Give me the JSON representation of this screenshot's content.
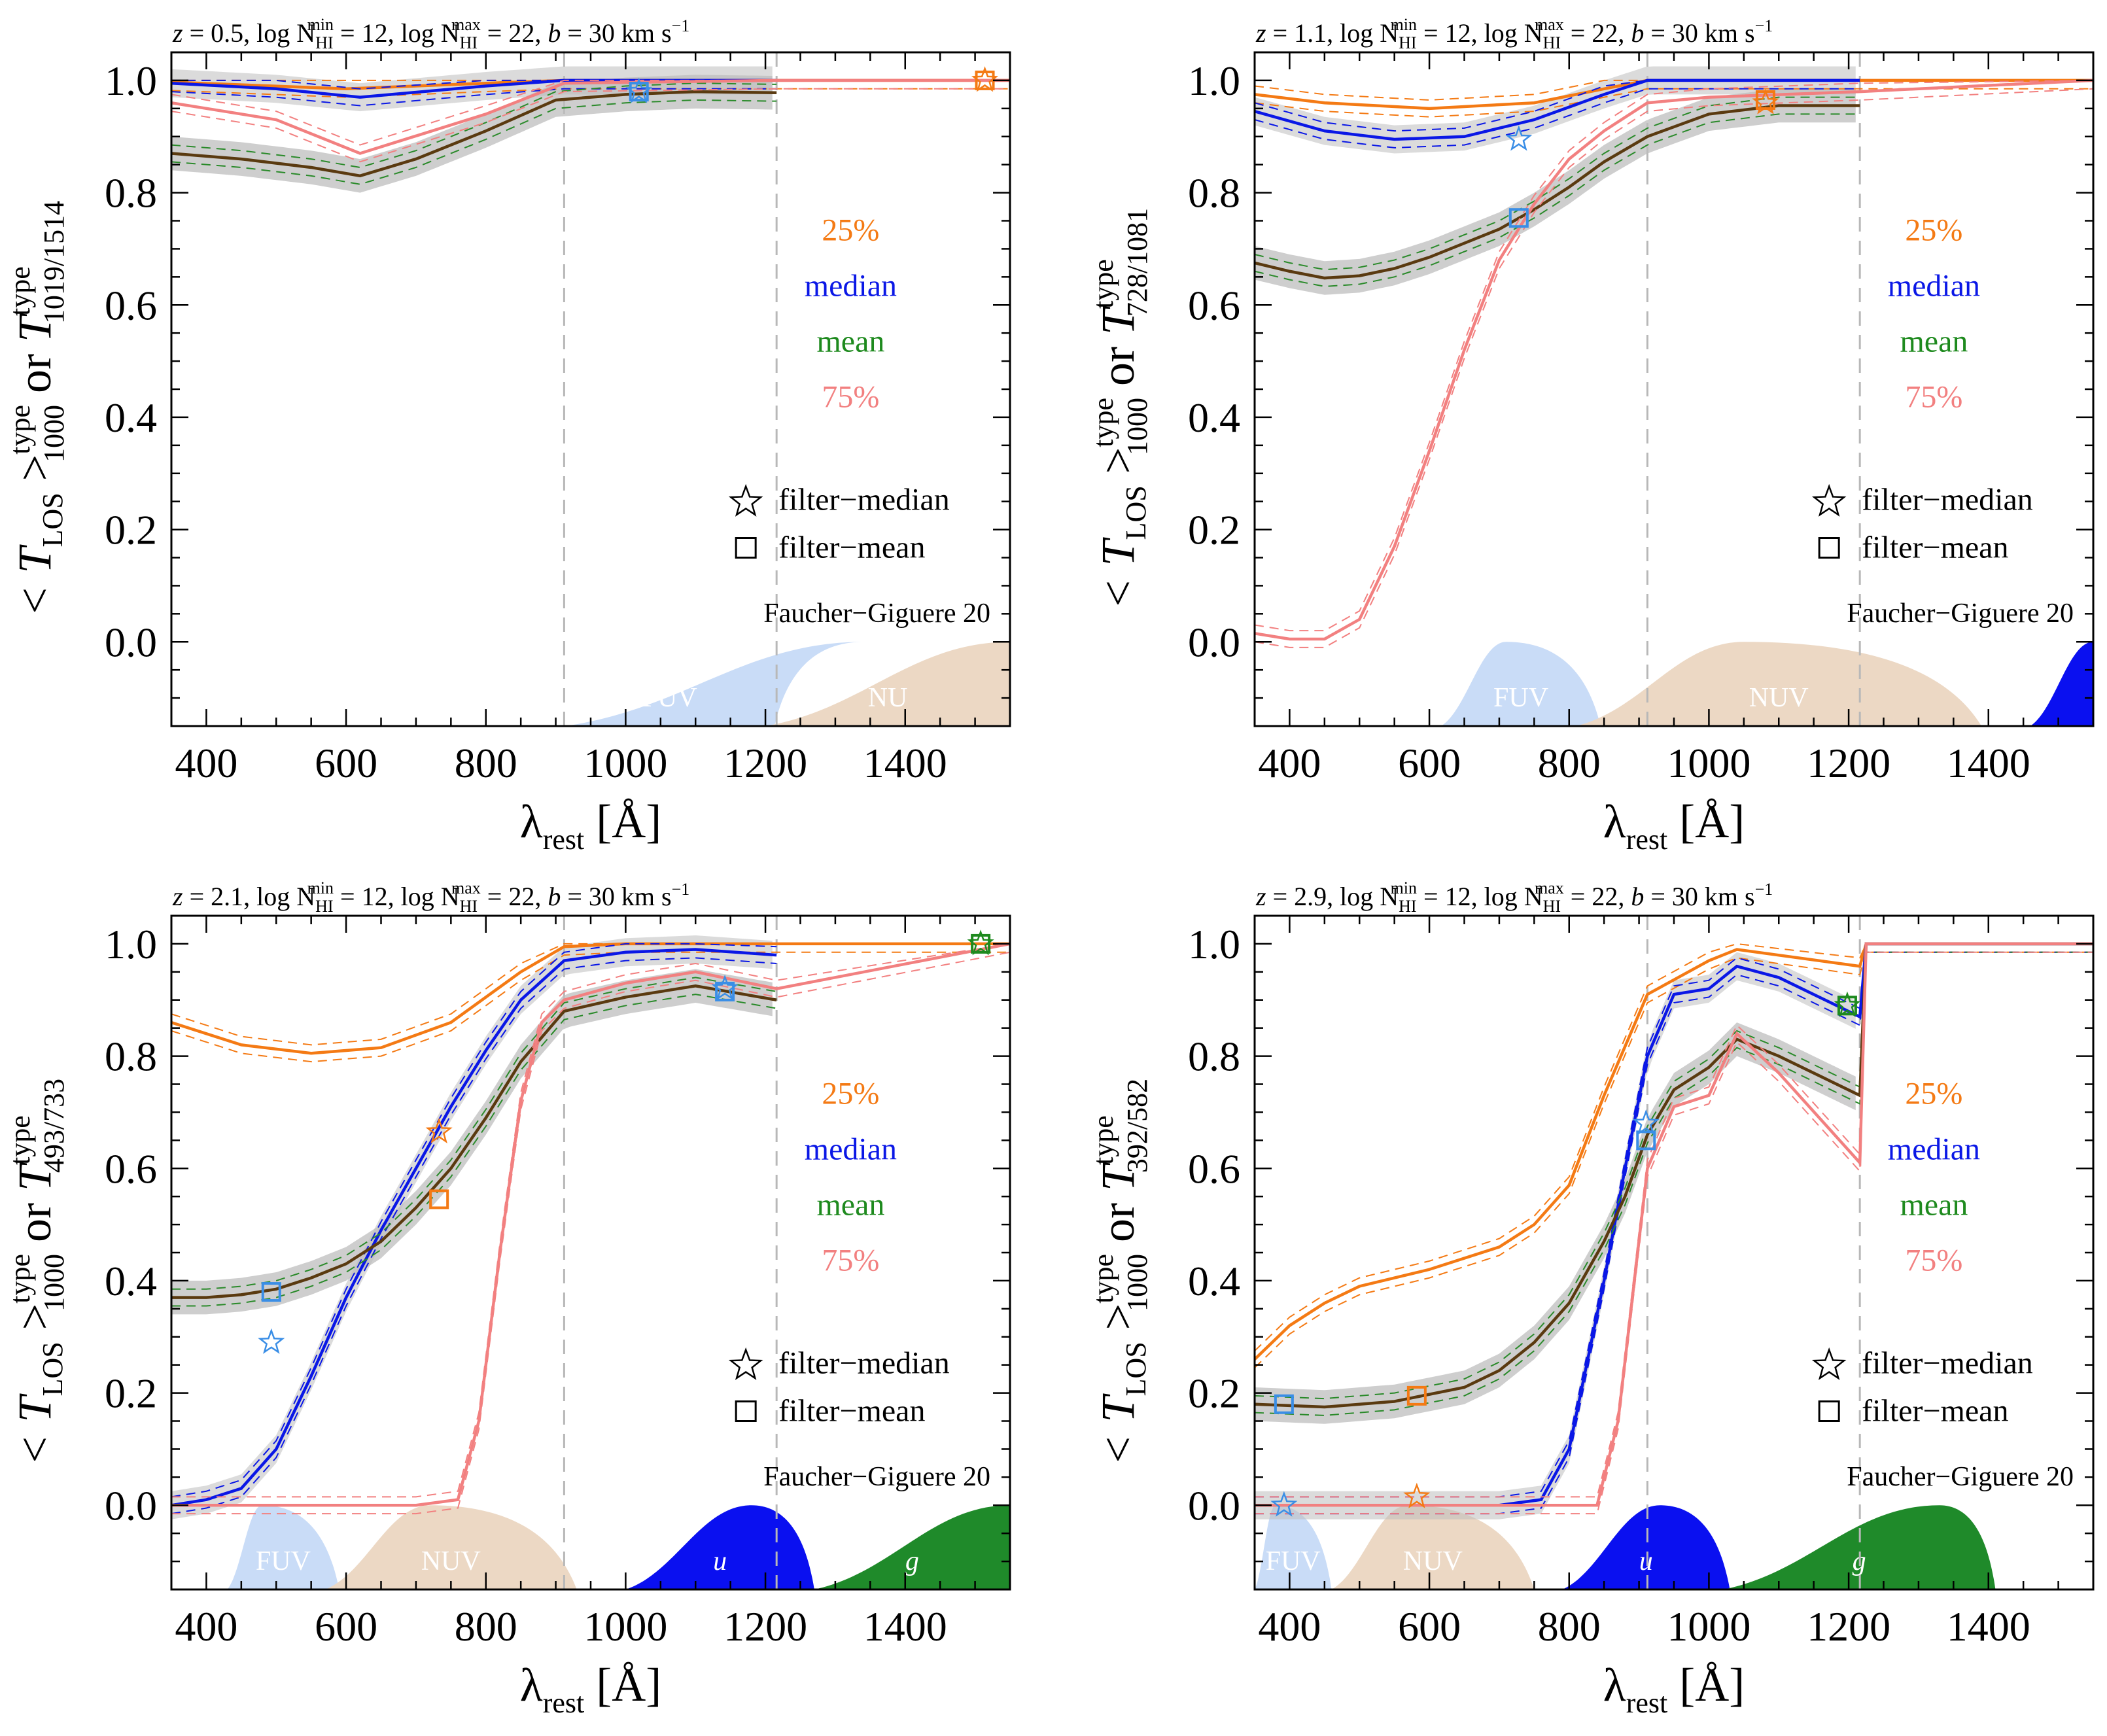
{
  "figure": {
    "xlabel": "λ",
    "xlabel_sub": "rest",
    "xlabel_unit": "[Å]",
    "ylabel_main": "T",
    "ylabel_or": "or",
    "ylabel_mean": "< T",
    "ylabel_mean_sub": "LOS",
    "ylabel_mean_close": ">",
    "ylabel_mean_sup": "type",
    "ylabel_mean_subscript": "1000",
    "legend_percentiles": [
      {
        "label": "25%",
        "color": "#f47a14"
      },
      {
        "label": "median",
        "color": "#0a17e6"
      },
      {
        "label": "mean",
        "color": "#1e8a1e"
      },
      {
        "label": "75%",
        "color": "#f28080"
      }
    ],
    "legend_star": "filter−median",
    "legend_square": "filter−mean",
    "credit": "Faucher−Giguere 20",
    "title_parts": {
      "zlabel": "z",
      "n_min_label": "log N",
      "n_min_sub": "HI",
      "n_min_sup": "min",
      "n_min_val": "= 12,",
      "n_max_label": "log N",
      "n_max_sup": "max",
      "n_max_val": "= 22,",
      "b_text": "b",
      "b_val": "= 30 km s",
      "b_exp": "−1"
    },
    "colors": {
      "p25": "#f47a14",
      "median": "#0a17e6",
      "mean_line": "#5a3a10",
      "mean_dash": "#2a8a2a",
      "p75": "#f28080",
      "shade": "#bdbdbd",
      "marker_blue": "#3a8ee6",
      "marker_orange": "#f47a14",
      "marker_green": "#1e8a1e",
      "fuv": "#c9dcf7",
      "nuv": "#ecd8c4",
      "u": "#0a10f0",
      "g": "#1f8a2a",
      "vline": "#b8b8b8"
    }
  },
  "chart_data": [
    {
      "type": "line",
      "panel": "top-left",
      "z": "0.5",
      "zval": "= 0.5,",
      "ylabel_sub": "1019/1514",
      "xlim": [
        350,
        1550
      ],
      "ylim": [
        -0.15,
        1.05
      ],
      "xticks": [
        "400",
        "600",
        "800",
        "1000",
        "1200",
        "1400"
      ],
      "yticks": [
        "0.0",
        "0.2",
        "0.4",
        "0.6",
        "0.8",
        "1.0"
      ],
      "vlines": [
        912,
        1216
      ],
      "series": [
        {
          "name": "25%",
          "x": [
            350,
            600,
            800,
            912,
            1216,
            1550
          ],
          "y": [
            0.997,
            0.985,
            0.995,
            1.0,
            1.0,
            1.0
          ]
        },
        {
          "name": "median",
          "x": [
            350,
            500,
            620,
            800,
            912,
            1216
          ],
          "y": [
            0.995,
            0.985,
            0.97,
            0.99,
            1.0,
            1.0
          ]
        },
        {
          "name": "mean",
          "x": [
            350,
            450,
            550,
            620,
            700,
            800,
            900,
            1000,
            1100,
            1216
          ],
          "y": [
            0.87,
            0.86,
            0.845,
            0.83,
            0.86,
            0.91,
            0.965,
            0.975,
            0.98,
            0.978
          ]
        },
        {
          "name": "75%",
          "x": [
            350,
            500,
            620,
            800,
            912,
            1216,
            1550
          ],
          "y": [
            0.96,
            0.93,
            0.87,
            0.94,
            0.995,
            1.0,
            1.0
          ]
        }
      ],
      "filter_points": [
        {
          "filter": "FUV",
          "x": 1019,
          "median": 0.98,
          "mean": 0.98,
          "color": "blue"
        },
        {
          "filter": "NUV",
          "x": 1514,
          "median": 1.0,
          "mean": 1.0,
          "color": "orange"
        }
      ],
      "bands": [
        {
          "label": "FUV",
          "x": [
            913,
            1213
          ],
          "peak": 1341,
          "fill": "fuv"
        },
        {
          "label": "NU",
          "x": [
            1200,
            1550
          ],
          "peak": 1550,
          "fill": "nuv"
        }
      ]
    },
    {
      "type": "line",
      "panel": "top-right",
      "z": "1.1",
      "zval": "= 1.1,",
      "ylabel_sub": "728/1081",
      "xlim": [
        350,
        1550
      ],
      "ylim": [
        -0.15,
        1.05
      ],
      "xticks": [
        "400",
        "600",
        "800",
        "1000",
        "1200",
        "1400"
      ],
      "yticks": [
        "0.0",
        "0.2",
        "0.4",
        "0.6",
        "0.8",
        "1.0"
      ],
      "vlines": [
        912,
        1216
      ],
      "series": [
        {
          "name": "25%",
          "x": [
            350,
            450,
            600,
            750,
            850,
            912,
            1216,
            1550
          ],
          "y": [
            0.975,
            0.96,
            0.95,
            0.96,
            0.985,
            1.0,
            1.0,
            1.0
          ]
        },
        {
          "name": "median",
          "x": [
            350,
            450,
            550,
            650,
            750,
            850,
            912,
            1216
          ],
          "y": [
            0.945,
            0.91,
            0.895,
            0.9,
            0.93,
            0.975,
            1.0,
            1.0
          ]
        },
        {
          "name": "mean",
          "x": [
            350,
            400,
            450,
            500,
            550,
            600,
            650,
            700,
            750,
            800,
            850,
            912,
            1000,
            1100,
            1216
          ],
          "y": [
            0.675,
            0.66,
            0.648,
            0.652,
            0.665,
            0.685,
            0.71,
            0.735,
            0.77,
            0.81,
            0.855,
            0.9,
            0.94,
            0.955,
            0.955
          ]
        },
        {
          "name": "75%",
          "x": [
            350,
            400,
            450,
            500,
            550,
            600,
            650,
            700,
            750,
            800,
            850,
            912,
            1000,
            1216,
            1550
          ],
          "y": [
            0.015,
            0.005,
            0.005,
            0.04,
            0.17,
            0.34,
            0.52,
            0.68,
            0.78,
            0.86,
            0.91,
            0.96,
            0.97,
            0.98,
            1.0
          ]
        }
      ],
      "filter_points": [
        {
          "filter": "FUV",
          "x": 728,
          "median": 0.895,
          "mean": 0.755,
          "color": "blue"
        },
        {
          "filter": "NUV",
          "x": 1081,
          "median": 0.96,
          "mean": 0.965,
          "color": "orange"
        }
      ],
      "bands": [
        {
          "label": "FUV",
          "x": [
            617,
            845
          ],
          "peak": 710,
          "fill": "fuv"
        },
        {
          "label": "NUV",
          "x": [
            810,
            1390
          ],
          "peak": 1050,
          "fill": "nuv"
        },
        {
          "label": "",
          "x": [
            1460,
            1550
          ],
          "peak": 1550,
          "fill": "u"
        }
      ]
    },
    {
      "type": "line",
      "panel": "bottom-left",
      "z": "2.1",
      "zval": "= 2.1,",
      "ylabel_sub": "493/733",
      "xlim": [
        350,
        1550
      ],
      "ylim": [
        -0.15,
        1.05
      ],
      "xticks": [
        "400",
        "600",
        "800",
        "1000",
        "1200",
        "1400"
      ],
      "yticks": [
        "0.0",
        "0.2",
        "0.4",
        "0.6",
        "0.8",
        "1.0"
      ],
      "vlines": [
        912,
        1216
      ],
      "series": [
        {
          "name": "25%",
          "x": [
            350,
            450,
            550,
            650,
            750,
            850,
            912,
            1000,
            1216,
            1550
          ],
          "y": [
            0.86,
            0.82,
            0.805,
            0.815,
            0.86,
            0.95,
            0.995,
            1.0,
            1.0,
            1.0
          ]
        },
        {
          "name": "median",
          "x": [
            350,
            400,
            450,
            500,
            550,
            600,
            650,
            700,
            750,
            800,
            850,
            912,
            1000,
            1100,
            1216
          ],
          "y": [
            0.0,
            0.01,
            0.03,
            0.1,
            0.23,
            0.37,
            0.49,
            0.6,
            0.71,
            0.81,
            0.9,
            0.97,
            0.985,
            0.99,
            0.98
          ]
        },
        {
          "name": "mean",
          "x": [
            350,
            400,
            450,
            500,
            550,
            600,
            650,
            700,
            750,
            800,
            850,
            912,
            1000,
            1100,
            1216
          ],
          "y": [
            0.37,
            0.37,
            0.375,
            0.385,
            0.405,
            0.43,
            0.47,
            0.53,
            0.6,
            0.69,
            0.79,
            0.88,
            0.905,
            0.925,
            0.9
          ]
        },
        {
          "name": "75%",
          "x": [
            350,
            700,
            760,
            790,
            820,
            850,
            880,
            912,
            1000,
            1100,
            1216,
            1550
          ],
          "y": [
            0.0,
            0.0,
            0.01,
            0.15,
            0.45,
            0.72,
            0.86,
            0.9,
            0.93,
            0.95,
            0.92,
            1.0
          ]
        }
      ],
      "filter_points": [
        {
          "filter": "FUV",
          "x": 493,
          "median": 0.29,
          "mean": 0.38,
          "color": "blue"
        },
        {
          "filter": "NUV",
          "x": 733,
          "median": 0.665,
          "mean": 0.545,
          "color": "orange"
        },
        {
          "filter": "u",
          "x": 1142,
          "median": 0.92,
          "mean": 0.915,
          "color": "blue"
        },
        {
          "filter": "g",
          "x": 1508,
          "median": 1.0,
          "mean": 1.0,
          "color": "green"
        }
      ],
      "bands": [
        {
          "label": "FUV",
          "x": [
            430,
            590
          ],
          "peak": 480,
          "fill": "fuv"
        },
        {
          "label": "NUV",
          "x": [
            570,
            930
          ],
          "peak": 720,
          "fill": "nuv"
        },
        {
          "label": "u",
          "x": [
            1000,
            1270
          ],
          "peak": 1180,
          "fill": "u"
        },
        {
          "label": "g",
          "x": [
            1270,
            1550
          ],
          "peak": 1550,
          "fill": "g"
        }
      ]
    },
    {
      "type": "line",
      "panel": "bottom-right",
      "z": "2.9",
      "zval": "= 2.9,",
      "ylabel_sub": "392/582",
      "xlim": [
        350,
        1550
      ],
      "ylim": [
        -0.15,
        1.05
      ],
      "xticks": [
        "400",
        "600",
        "800",
        "1000",
        "1200",
        "1400"
      ],
      "yticks": [
        "0.0",
        "0.2",
        "0.4",
        "0.6",
        "0.8",
        "1.0"
      ],
      "vlines": [
        912,
        1216
      ],
      "series": [
        {
          "name": "25%",
          "x": [
            350,
            400,
            450,
            500,
            600,
            700,
            750,
            800,
            850,
            912,
            1000,
            1040,
            1216,
            1225,
            1550
          ],
          "y": [
            0.26,
            0.32,
            0.36,
            0.39,
            0.42,
            0.46,
            0.5,
            0.57,
            0.73,
            0.91,
            0.97,
            0.99,
            0.96,
            1.0,
            1.0
          ]
        },
        {
          "name": "median",
          "x": [
            350,
            700,
            760,
            800,
            850,
            880,
            912,
            950,
            1000,
            1040,
            1100,
            1216,
            1225,
            1550
          ],
          "y": [
            0.0,
            0.0,
            0.01,
            0.1,
            0.4,
            0.6,
            0.8,
            0.91,
            0.92,
            0.96,
            0.94,
            0.87,
            1.0,
            1.0
          ]
        },
        {
          "name": "mean",
          "x": [
            350,
            450,
            550,
            650,
            700,
            750,
            800,
            850,
            880,
            912,
            950,
            1000,
            1040,
            1100,
            1216,
            1225,
            1550
          ],
          "y": [
            0.18,
            0.175,
            0.185,
            0.21,
            0.24,
            0.29,
            0.36,
            0.47,
            0.55,
            0.66,
            0.74,
            0.78,
            0.83,
            0.8,
            0.73,
            1.0,
            1.0
          ]
        },
        {
          "name": "75%",
          "x": [
            350,
            840,
            870,
            912,
            950,
            1000,
            1040,
            1100,
            1216,
            1225,
            1550
          ],
          "y": [
            0.0,
            0.0,
            0.15,
            0.6,
            0.71,
            0.73,
            0.84,
            0.77,
            0.61,
            1.0,
            1.0
          ]
        }
      ],
      "filter_points": [
        {
          "filter": "FUV",
          "x": 392,
          "median": 0.0,
          "mean": 0.18,
          "color": "blue"
        },
        {
          "filter": "NUV",
          "x": 582,
          "median": 0.015,
          "mean": 0.195,
          "color": "orange"
        },
        {
          "filter": "u",
          "x": 910,
          "median": 0.68,
          "mean": 0.65,
          "color": "blue"
        },
        {
          "filter": "g",
          "x": 1198,
          "median": 0.89,
          "mean": 0.89,
          "color": "green"
        }
      ],
      "bands": [
        {
          "label": "FUV",
          "x": [
            350,
            460
          ],
          "peak": 380,
          "fill": "fuv"
        },
        {
          "label": "NUV",
          "x": [
            460,
            750
          ],
          "peak": 570,
          "fill": "nuv"
        },
        {
          "label": "u",
          "x": [
            790,
            1030
          ],
          "peak": 930,
          "fill": "u"
        },
        {
          "label": "g",
          "x": [
            1020,
            1410
          ],
          "peak": 1330,
          "fill": "g"
        }
      ]
    }
  ]
}
